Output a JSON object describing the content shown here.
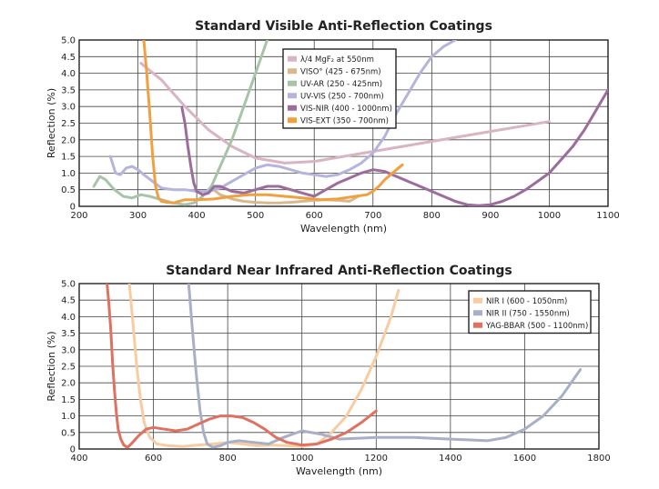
{
  "colors": {
    "mgf2": "#d8b4c4",
    "viso": "#d9b98c",
    "uvar": "#a8c4a8",
    "uvvis": "#b4b4dc",
    "visnir": "#9c6c9c",
    "visext": "#f0a040",
    "nir1": "#f8cca0",
    "nir2": "#a8b0c8",
    "yag": "#e07060"
  },
  "chart_data": [
    {
      "type": "line",
      "title": "Standard Visible Anti-Reflection Coatings",
      "xlabel": "Wavelength (nm)",
      "ylabel": "Reflection (%)",
      "xlim": [
        200,
        1100
      ],
      "ylim": [
        0,
        5
      ],
      "xticks": [
        "200",
        "300",
        "400",
        "500",
        "600",
        "700",
        "800",
        "900",
        "1000",
        "1100"
      ],
      "yticks": [
        "0",
        "0.5",
        "1.0",
        "1.5",
        "2.0",
        "2.5",
        "3.0",
        "3.5",
        "4.0",
        "4.5",
        "5.0"
      ],
      "grid": true,
      "legend_position": "top-center",
      "series": [
        {
          "name": "λ/4 MgF₂ at 550nm",
          "color_key": "mgf2",
          "x": [
            305,
            340,
            380,
            420,
            460,
            500,
            550,
            600,
            650,
            700,
            750,
            800,
            850,
            900,
            950,
            1000
          ],
          "y": [
            4.3,
            3.8,
            3.0,
            2.3,
            1.8,
            1.45,
            1.3,
            1.35,
            1.5,
            1.65,
            1.8,
            1.95,
            2.1,
            2.25,
            2.4,
            2.55
          ]
        },
        {
          "name": "VISO° (425 - 675nm)",
          "color_key": "viso",
          "x": [
            425,
            440,
            460,
            480,
            500,
            520,
            540,
            560,
            580,
            600,
            620,
            640,
            660,
            675
          ],
          "y": [
            0.55,
            0.35,
            0.22,
            0.15,
            0.12,
            0.1,
            0.1,
            0.12,
            0.15,
            0.18,
            0.2,
            0.18,
            0.15,
            0.3
          ]
        },
        {
          "name": "UV-AR (250 - 425nm)",
          "color_key": "uvar",
          "x": [
            225,
            235,
            245,
            260,
            275,
            290,
            305,
            320,
            340,
            360,
            380,
            395,
            410,
            425,
            440,
            460,
            480,
            500,
            520
          ],
          "y": [
            0.6,
            0.9,
            0.8,
            0.5,
            0.3,
            0.25,
            0.35,
            0.3,
            0.2,
            0.1,
            0.05,
            0.1,
            0.3,
            0.6,
            1.2,
            2.0,
            3.0,
            4.0,
            5.0
          ]
        },
        {
          "name": "UV-VIS (250 - 700nm)",
          "color_key": "uvvis",
          "x": [
            253,
            262,
            270,
            280,
            290,
            300,
            310,
            325,
            340,
            360,
            380,
            400,
            420,
            440,
            460,
            480,
            500,
            520,
            540,
            560,
            580,
            600,
            620,
            640,
            660,
            680,
            700,
            720,
            740,
            760,
            780,
            800,
            820,
            840
          ],
          "y": [
            1.5,
            1.0,
            0.95,
            1.15,
            1.2,
            1.1,
            0.95,
            0.75,
            0.55,
            0.5,
            0.5,
            0.45,
            0.45,
            0.55,
            0.75,
            0.95,
            1.15,
            1.25,
            1.2,
            1.1,
            1.0,
            0.95,
            0.9,
            0.95,
            1.1,
            1.3,
            1.6,
            2.1,
            2.8,
            3.4,
            4.0,
            4.5,
            4.8,
            5.0
          ]
        },
        {
          "name": "VIS-NIR (400 - 1000nm)",
          "color_key": "visnir",
          "x": [
            375,
            380,
            385,
            390,
            395,
            400,
            410,
            420,
            430,
            440,
            460,
            480,
            500,
            520,
            540,
            560,
            580,
            600,
            620,
            640,
            660,
            680,
            700,
            720,
            740,
            760,
            780,
            800,
            820,
            840,
            860,
            880,
            900,
            920,
            940,
            960,
            980,
            1000,
            1020,
            1040,
            1060,
            1080,
            1100
          ],
          "y": [
            2.95,
            2.5,
            1.8,
            1.2,
            0.7,
            0.45,
            0.35,
            0.4,
            0.6,
            0.6,
            0.45,
            0.4,
            0.5,
            0.6,
            0.6,
            0.5,
            0.4,
            0.3,
            0.5,
            0.7,
            0.85,
            1.0,
            1.1,
            1.05,
            0.9,
            0.75,
            0.6,
            0.45,
            0.3,
            0.15,
            0.05,
            0.02,
            0.05,
            0.15,
            0.3,
            0.5,
            0.75,
            1.0,
            1.4,
            1.8,
            2.3,
            2.9,
            3.5
          ]
        },
        {
          "name": "VIS-EXT (350 - 700nm)",
          "color_key": "visext",
          "x": [
            310,
            315,
            320,
            325,
            330,
            335,
            340,
            350,
            360,
            380,
            400,
            430,
            460,
            490,
            520,
            550,
            580,
            610,
            640,
            670,
            690,
            700,
            710,
            720,
            730,
            740,
            750
          ],
          "y": [
            5.0,
            4.0,
            2.8,
            1.5,
            0.6,
            0.25,
            0.15,
            0.12,
            0.1,
            0.2,
            0.2,
            0.22,
            0.3,
            0.35,
            0.35,
            0.3,
            0.25,
            0.2,
            0.22,
            0.3,
            0.35,
            0.45,
            0.6,
            0.8,
            0.95,
            1.1,
            1.25
          ]
        }
      ]
    },
    {
      "type": "line",
      "title": "Standard Near Infrared Anti-Reflection Coatings",
      "xlabel": "Wavelength (nm)",
      "ylabel": "Reflection (%)",
      "xlim": [
        400,
        1800
      ],
      "ylim": [
        0,
        5
      ],
      "xticks": [
        "400",
        "600",
        "800",
        "1000",
        "1200",
        "1400",
        "1600",
        "1800"
      ],
      "yticks": [
        "0",
        "0.5",
        "1.0",
        "1.5",
        "2.0",
        "2.5",
        "3.0",
        "3.5",
        "4.0",
        "4.5",
        "5.0"
      ],
      "grid": true,
      "legend_position": "top-right",
      "series": [
        {
          "name": "NIR I (600 - 1050nm)",
          "color_key": "nir1",
          "x": [
            535,
            545,
            555,
            565,
            575,
            590,
            610,
            640,
            680,
            720,
            760,
            800,
            840,
            880,
            920,
            960,
            1000,
            1040,
            1080,
            1120,
            1160,
            1200,
            1240,
            1260
          ],
          "y": [
            5.0,
            3.8,
            2.5,
            1.5,
            0.8,
            0.35,
            0.15,
            0.1,
            0.08,
            0.12,
            0.15,
            0.2,
            0.15,
            0.1,
            0.12,
            0.1,
            0.08,
            0.15,
            0.5,
            1.0,
            1.8,
            2.8,
            4.0,
            4.8
          ]
        },
        {
          "name": "NIR II (750 - 1550nm)",
          "color_key": "nir2",
          "x": [
            695,
            705,
            715,
            725,
            735,
            745,
            760,
            780,
            800,
            830,
            870,
            910,
            950,
            1000,
            1050,
            1100,
            1200,
            1300,
            1400,
            1500,
            1550,
            1600,
            1650,
            1700,
            1750
          ],
          "y": [
            5.0,
            3.6,
            2.3,
            1.2,
            0.5,
            0.15,
            0.05,
            0.1,
            0.2,
            0.25,
            0.2,
            0.15,
            0.35,
            0.55,
            0.45,
            0.3,
            0.35,
            0.35,
            0.3,
            0.25,
            0.35,
            0.6,
            1.0,
            1.6,
            2.4
          ]
        },
        {
          "name": "YAG-BBAR (500 - 1100nm)",
          "color_key": "yag",
          "x": [
            475,
            480,
            485,
            490,
            495,
            500,
            505,
            512,
            520,
            530,
            540,
            560,
            580,
            600,
            630,
            660,
            690,
            720,
            750,
            780,
            810,
            840,
            870,
            900,
            930,
            960,
            1000,
            1040,
            1080,
            1120,
            1160,
            1200
          ],
          "y": [
            5.0,
            4.4,
            3.6,
            2.6,
            1.8,
            1.1,
            0.6,
            0.3,
            0.12,
            0.05,
            0.15,
            0.4,
            0.6,
            0.65,
            0.6,
            0.55,
            0.6,
            0.75,
            0.9,
            1.0,
            1.0,
            0.95,
            0.8,
            0.6,
            0.35,
            0.2,
            0.12,
            0.15,
            0.3,
            0.5,
            0.8,
            1.15
          ]
        }
      ]
    }
  ]
}
